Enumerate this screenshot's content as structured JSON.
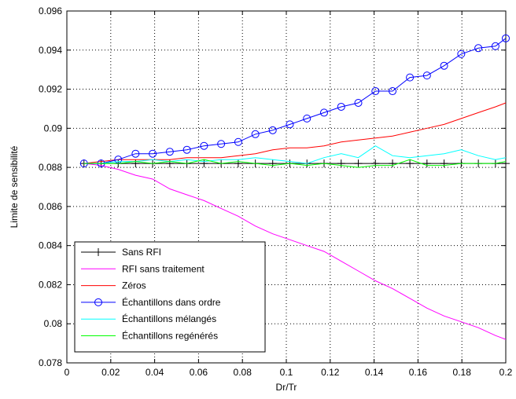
{
  "chart_data": {
    "type": "line",
    "title": "",
    "xlabel": "Dr/Tr",
    "ylabel": "Limite de sensibilité",
    "xlim": [
      0,
      0.2
    ],
    "ylim": [
      0.078,
      0.096
    ],
    "x_ticks": [
      "0",
      "0.02",
      "0.04",
      "0.06",
      "0.08",
      "0.1",
      "0.12",
      "0.14",
      "0.16",
      "0.18",
      "0.2"
    ],
    "y_ticks": [
      "0.078",
      "0.08",
      "0.082",
      "0.084",
      "0.086",
      "0.088",
      "0.09",
      "0.092",
      "0.094",
      "0.096"
    ],
    "grid": true,
    "legend_position": "bottom-left",
    "x": [
      0.0078,
      0.0156,
      0.0234,
      0.0313,
      0.0391,
      0.0469,
      0.0547,
      0.0625,
      0.0703,
      0.0781,
      0.0859,
      0.0938,
      0.1016,
      0.1094,
      0.1172,
      0.125,
      0.1328,
      0.1406,
      0.1484,
      0.1563,
      0.1641,
      0.1719,
      0.1797,
      0.1875,
      0.1953,
      0.2
    ],
    "series": [
      {
        "name": "Sans RFI",
        "color": "#000000",
        "marker": "plus",
        "values": [
          0.0882,
          0.0882,
          0.0882,
          0.0882,
          0.0882,
          0.0882,
          0.0882,
          0.0882,
          0.0882,
          0.0882,
          0.0882,
          0.0882,
          0.0882,
          0.0882,
          0.0882,
          0.0882,
          0.0882,
          0.0882,
          0.0882,
          0.0882,
          0.0882,
          0.0882,
          0.0882,
          0.0882,
          0.0882,
          0.0882
        ]
      },
      {
        "name": "RFI sans traitement",
        "color": "#ff00ff",
        "marker": "none",
        "values": [
          0.0882,
          0.0881,
          0.0879,
          0.0876,
          0.0874,
          0.0869,
          0.0866,
          0.0863,
          0.0859,
          0.0855,
          0.085,
          0.0846,
          0.0843,
          0.084,
          0.0837,
          0.0832,
          0.0827,
          0.0822,
          0.0818,
          0.0813,
          0.0808,
          0.0804,
          0.0801,
          0.0798,
          0.0794,
          0.0792
        ]
      },
      {
        "name": "Zéros",
        "color": "#ff0000",
        "marker": "none",
        "values": [
          0.0882,
          0.0883,
          0.0884,
          0.0884,
          0.0884,
          0.0884,
          0.0885,
          0.0885,
          0.0885,
          0.0886,
          0.0887,
          0.0889,
          0.089,
          0.089,
          0.0891,
          0.0893,
          0.0894,
          0.0895,
          0.0896,
          0.0898,
          0.09,
          0.0902,
          0.0905,
          0.0908,
          0.0911,
          0.0913
        ]
      },
      {
        "name": "Échantillons dans ordre",
        "color": "#0000ff",
        "marker": "circle",
        "values": [
          0.0882,
          0.0882,
          0.0884,
          0.0887,
          0.0887,
          0.0888,
          0.0889,
          0.0891,
          0.0892,
          0.0893,
          0.0897,
          0.0899,
          0.0902,
          0.0905,
          0.0908,
          0.0911,
          0.0913,
          0.0919,
          0.0919,
          0.0926,
          0.0927,
          0.0932,
          0.0938,
          0.0941,
          0.0942,
          0.0946
        ]
      },
      {
        "name": "Échantillons mélangés",
        "color": "#00ffff",
        "marker": "none",
        "values": [
          0.0882,
          0.0882,
          0.0883,
          0.0883,
          0.0884,
          0.0883,
          0.0884,
          0.0883,
          0.0884,
          0.0884,
          0.0885,
          0.0884,
          0.0883,
          0.0882,
          0.0885,
          0.0887,
          0.0885,
          0.0891,
          0.0886,
          0.0885,
          0.0886,
          0.0887,
          0.0889,
          0.0886,
          0.0884,
          0.0885
        ]
      },
      {
        "name": "Échantillons regénérés",
        "color": "#00ff00",
        "marker": "none",
        "values": [
          0.0882,
          0.0882,
          0.0882,
          0.0883,
          0.0882,
          0.0883,
          0.0882,
          0.0884,
          0.0882,
          0.0883,
          0.0882,
          0.0881,
          0.0882,
          0.0881,
          0.0882,
          0.0881,
          0.088,
          0.0881,
          0.0881,
          0.0884,
          0.0881,
          0.0881,
          0.0882,
          0.0882,
          0.0882,
          0.0883
        ]
      }
    ]
  }
}
